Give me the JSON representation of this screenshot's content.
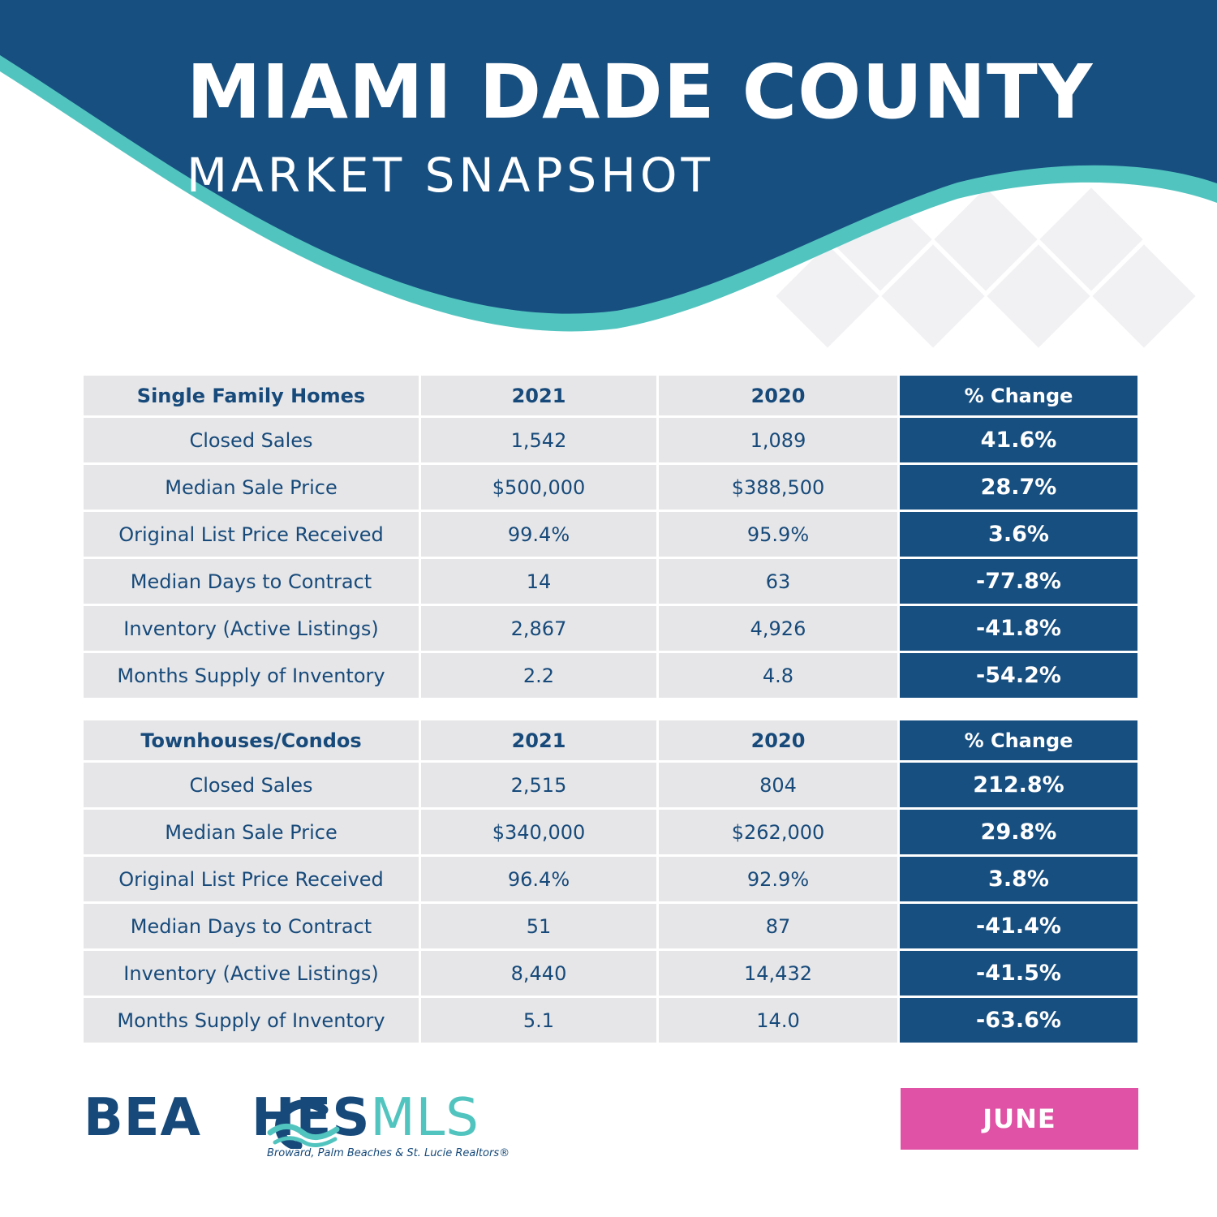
{
  "header": {
    "title": "MIAMI DADE COUNTY",
    "subtitle": "MARKET SNAPSHOT"
  },
  "colors": {
    "navy": "#174f80",
    "teal": "#52c4bf",
    "cell_gray": "#e6e6e8",
    "text_navy": "#174a7a",
    "badge_pink": "#e052a5"
  },
  "tables": [
    {
      "headers": [
        "Single Family Homes",
        "2021",
        "2020",
        "% Change"
      ],
      "rows": [
        {
          "label": "Closed Sales",
          "y2021": "1,542",
          "y2020": "1,089",
          "change": "41.6%"
        },
        {
          "label": "Median Sale Price",
          "y2021": "$500,000",
          "y2020": "$388,500",
          "change": "28.7%"
        },
        {
          "label": "Original List Price Received",
          "y2021": "99.4%",
          "y2020": "95.9%",
          "change": "3.6%"
        },
        {
          "label": "Median Days to Contract",
          "y2021": "14",
          "y2020": "63",
          "change": "-77.8%"
        },
        {
          "label": "Inventory (Active Listings)",
          "y2021": "2,867",
          "y2020": "4,926",
          "change": "-41.8%"
        },
        {
          "label": "Months Supply of Inventory",
          "y2021": "2.2",
          "y2020": "4.8",
          "change": "-54.2%"
        }
      ]
    },
    {
      "headers": [
        "Townhouses/Condos",
        "2021",
        "2020",
        "% Change"
      ],
      "rows": [
        {
          "label": "Closed Sales",
          "y2021": "2,515",
          "y2020": "804",
          "change": "212.8%"
        },
        {
          "label": "Median Sale Price",
          "y2021": "$340,000",
          "y2020": "$262,000",
          "change": "29.8%"
        },
        {
          "label": "Original List Price Received",
          "y2021": "96.4%",
          "y2020": "92.9%",
          "change": "3.8%"
        },
        {
          "label": "Median Days to Contract",
          "y2021": "51",
          "y2020": "87",
          "change": "-41.4%"
        },
        {
          "label": "Inventory (Active Listings)",
          "y2021": "8,440",
          "y2020": "14,432",
          "change": "-41.5%"
        },
        {
          "label": "Months Supply of Inventory",
          "y2021": "5.1",
          "y2020": "14.0",
          "change": "-63.6%"
        }
      ]
    }
  ],
  "logo": {
    "brand_strong_a": "BEA",
    "brand_strong_b": "HES",
    "brand_light": "MLS",
    "tagline": "Broward, Palm Beaches & St. Lucie Realtors®"
  },
  "month": "JUNE"
}
